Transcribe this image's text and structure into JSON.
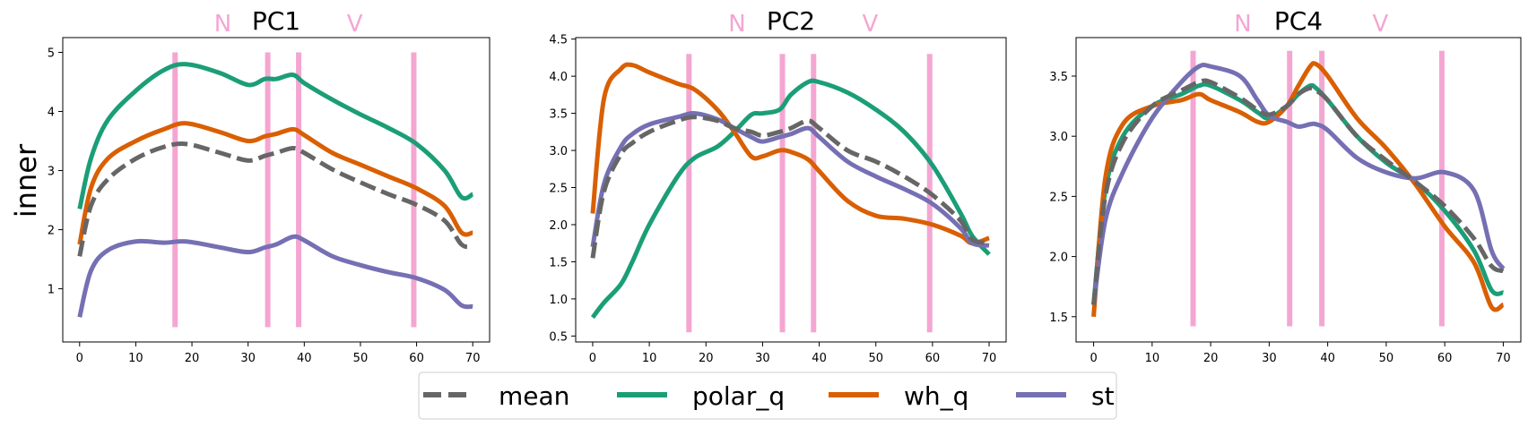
{
  "figure": {
    "ylabel": "inner",
    "colors": {
      "mean": "#666666",
      "polar_q": "#1b9e77",
      "wh_q": "#d95f02",
      "st": "#7570b3",
      "marker": "#f4a6d2"
    },
    "marker_labels": [
      "N",
      "V"
    ],
    "legend": [
      {
        "name": "mean",
        "style": "dashed",
        "color": "#666666"
      },
      {
        "name": "polar_q",
        "style": "solid",
        "color": "#1b9e77"
      },
      {
        "name": "wh_q",
        "style": "solid",
        "color": "#d95f02"
      },
      {
        "name": "st",
        "style": "solid",
        "color": "#7570b3"
      }
    ]
  },
  "chart_data": [
    {
      "type": "line",
      "title": "PC1",
      "ylabel": "inner",
      "xlim": [
        -3,
        73
      ],
      "ylim": [
        0.1,
        5.25
      ],
      "xticks": [
        0,
        10,
        20,
        30,
        40,
        50,
        60,
        70
      ],
      "yticks": [
        1,
        2,
        3,
        4,
        5
      ],
      "vlines": [
        17,
        33.5,
        39,
        59.5
      ],
      "vline_span": [
        0.35,
        5.0
      ],
      "marker_positions": [
        25.5,
        49
      ],
      "x": [
        0,
        2,
        5,
        10,
        15,
        19,
        25,
        30,
        33,
        35,
        38,
        40,
        45,
        50,
        55,
        60,
        65,
        68,
        70
      ],
      "series": [
        {
          "name": "mean",
          "values": [
            1.55,
            2.4,
            2.85,
            3.2,
            3.4,
            3.45,
            3.3,
            3.17,
            3.25,
            3.3,
            3.38,
            3.3,
            3.02,
            2.8,
            2.6,
            2.42,
            2.15,
            1.75,
            1.72
          ]
        },
        {
          "name": "polar_q",
          "values": [
            2.35,
            3.2,
            3.85,
            4.35,
            4.7,
            4.8,
            4.65,
            4.45,
            4.55,
            4.55,
            4.62,
            4.48,
            4.2,
            3.95,
            3.72,
            3.45,
            3.0,
            2.55,
            2.6
          ]
        },
        {
          "name": "wh_q",
          "values": [
            1.75,
            2.7,
            3.2,
            3.5,
            3.7,
            3.8,
            3.65,
            3.5,
            3.58,
            3.62,
            3.7,
            3.6,
            3.3,
            3.1,
            2.9,
            2.7,
            2.4,
            1.95,
            1.95
          ]
        },
        {
          "name": "st",
          "values": [
            0.52,
            1.3,
            1.65,
            1.8,
            1.78,
            1.8,
            1.7,
            1.62,
            1.7,
            1.75,
            1.88,
            1.82,
            1.55,
            1.4,
            1.28,
            1.18,
            0.98,
            0.72,
            0.7
          ]
        }
      ]
    },
    {
      "type": "line",
      "title": "PC2",
      "ylabel": "",
      "xlim": [
        -3,
        73
      ],
      "ylim": [
        0.42,
        4.52
      ],
      "xticks": [
        0,
        10,
        20,
        30,
        40,
        50,
        60,
        70
      ],
      "yticks": [
        0.5,
        1.0,
        1.5,
        2.0,
        2.5,
        3.0,
        3.5,
        4.0,
        4.5
      ],
      "vlines": [
        17,
        33.5,
        39,
        59.5
      ],
      "vline_span": [
        0.55,
        4.3
      ],
      "marker_positions": [
        25.5,
        49
      ],
      "x": [
        0,
        2,
        5,
        7,
        10,
        15,
        18,
        22,
        25,
        28,
        30,
        33,
        35,
        38,
        40,
        45,
        50,
        55,
        60,
        65,
        67,
        70
      ],
      "series": [
        {
          "name": "mean",
          "values": [
            1.55,
            2.45,
            2.95,
            3.1,
            3.25,
            3.4,
            3.45,
            3.4,
            3.3,
            3.25,
            3.2,
            3.25,
            3.3,
            3.4,
            3.3,
            3.0,
            2.85,
            2.65,
            2.4,
            2.05,
            1.8,
            1.75
          ]
        },
        {
          "name": "polar_q",
          "values": [
            0.75,
            0.95,
            1.2,
            1.5,
            2.0,
            2.65,
            2.9,
            3.05,
            3.25,
            3.48,
            3.5,
            3.55,
            3.75,
            3.92,
            3.92,
            3.78,
            3.55,
            3.25,
            2.8,
            2.15,
            1.85,
            1.6
          ]
        },
        {
          "name": "wh_q",
          "values": [
            2.15,
            3.7,
            4.1,
            4.15,
            4.05,
            3.9,
            3.82,
            3.55,
            3.25,
            2.92,
            2.92,
            3.0,
            2.98,
            2.88,
            2.72,
            2.32,
            2.12,
            2.08,
            2.0,
            1.85,
            1.75,
            1.82
          ]
        },
        {
          "name": "st",
          "values": [
            1.7,
            2.55,
            3.05,
            3.22,
            3.35,
            3.45,
            3.5,
            3.42,
            3.3,
            3.18,
            3.12,
            3.18,
            3.22,
            3.3,
            3.18,
            2.85,
            2.65,
            2.48,
            2.28,
            1.95,
            1.75,
            1.72
          ]
        }
      ]
    },
    {
      "type": "line",
      "title": "PC4",
      "ylabel": "",
      "xlim": [
        -3,
        73
      ],
      "ylim": [
        1.29,
        3.82
      ],
      "xticks": [
        0,
        10,
        20,
        30,
        40,
        50,
        60,
        70
      ],
      "yticks": [
        1.5,
        2.0,
        2.5,
        3.0,
        3.5
      ],
      "vlines": [
        17,
        33.5,
        39,
        59.5
      ],
      "vline_span": [
        1.42,
        3.71
      ],
      "marker_positions": [
        25.5,
        49
      ],
      "x": [
        0,
        2,
        5,
        10,
        15,
        18,
        20,
        25,
        28,
        30,
        33,
        35,
        37,
        38,
        40,
        45,
        50,
        55,
        60,
        65,
        68,
        70
      ],
      "series": [
        {
          "name": "mean",
          "values": [
            1.6,
            2.5,
            2.95,
            3.25,
            3.38,
            3.45,
            3.45,
            3.32,
            3.22,
            3.18,
            3.25,
            3.35,
            3.4,
            3.38,
            3.3,
            3.0,
            2.8,
            2.62,
            2.42,
            2.15,
            1.92,
            1.88
          ]
        },
        {
          "name": "polar_q",
          "values": [
            1.6,
            2.55,
            3.0,
            3.25,
            3.35,
            3.42,
            3.42,
            3.3,
            3.2,
            3.15,
            3.25,
            3.35,
            3.42,
            3.4,
            3.3,
            3.0,
            2.78,
            2.62,
            2.38,
            2.05,
            1.72,
            1.7
          ]
        },
        {
          "name": "wh_q",
          "values": [
            1.5,
            2.65,
            3.1,
            3.25,
            3.3,
            3.35,
            3.3,
            3.2,
            3.12,
            3.12,
            3.25,
            3.42,
            3.58,
            3.6,
            3.5,
            3.15,
            2.9,
            2.6,
            2.25,
            1.95,
            1.58,
            1.6
          ]
        },
        {
          "name": "st",
          "values": [
            1.6,
            2.3,
            2.7,
            3.15,
            3.45,
            3.58,
            3.58,
            3.5,
            3.3,
            3.17,
            3.12,
            3.08,
            3.1,
            3.1,
            3.05,
            2.82,
            2.7,
            2.65,
            2.7,
            2.55,
            2.05,
            1.9
          ]
        }
      ]
    }
  ]
}
